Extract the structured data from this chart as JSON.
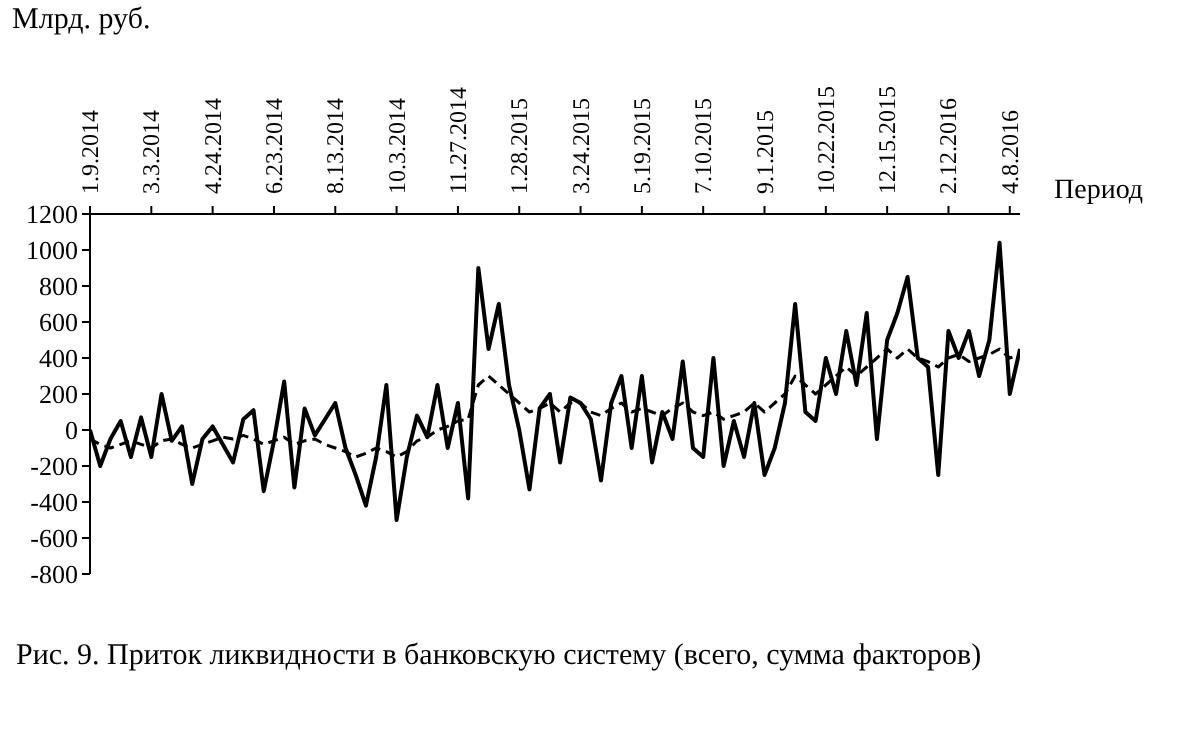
{
  "chart_data": {
    "type": "line",
    "ylabel": "Млрд. руб.",
    "xlabel": "Период",
    "annotations": [
      "Рис. 9. Приток ликвидности в банковскую систему (всего, сумма факторов)"
    ],
    "categories": [
      "1.9.2014",
      null,
      null,
      null,
      null,
      null,
      "3.3.2014",
      null,
      null,
      null,
      null,
      null,
      "4.24.2014",
      null,
      null,
      null,
      null,
      null,
      "6.23.2014",
      null,
      null,
      null,
      null,
      null,
      "8.13.2014",
      null,
      null,
      null,
      null,
      null,
      "10.3.2014",
      null,
      null,
      null,
      null,
      null,
      "11.27.2014",
      null,
      null,
      null,
      null,
      null,
      "1.28.2015",
      null,
      null,
      null,
      null,
      null,
      "3.24.2015",
      null,
      null,
      null,
      null,
      null,
      "5.19.2015",
      null,
      null,
      null,
      null,
      null,
      "7.10.2015",
      null,
      null,
      null,
      null,
      null,
      "9.1.2015",
      null,
      null,
      null,
      null,
      null,
      "10.22.2015",
      null,
      null,
      null,
      null,
      null,
      "12.15.2015",
      null,
      null,
      null,
      null,
      null,
      "2.12.2016",
      null,
      null,
      null,
      null,
      null,
      "4.8.2016",
      null
    ],
    "series": [
      {
        "color": "#000000",
        "line_style": "solid",
        "values": [
          0,
          -200,
          -50,
          50,
          -150,
          70,
          -150,
          200,
          -60,
          20,
          -300,
          -50,
          20,
          -80,
          -180,
          60,
          110,
          -340,
          -60,
          270,
          -320,
          120,
          -30,
          60,
          150,
          -100,
          -250,
          -420,
          -150,
          250,
          -500,
          -150,
          80,
          -40,
          250,
          -100,
          150,
          -380,
          900,
          450,
          700,
          250,
          0,
          -330,
          120,
          200,
          -180,
          180,
          150,
          60,
          -280,
          150,
          300,
          -100,
          300,
          -180,
          100,
          -50,
          380,
          -100,
          -150,
          400,
          -200,
          50,
          -150,
          150,
          -250,
          -100,
          150,
          700,
          100,
          50,
          400,
          200,
          550,
          250,
          650,
          -50,
          500,
          650,
          850,
          400,
          350,
          -250,
          550,
          400,
          550,
          300,
          500,
          1040,
          200,
          450
        ]
      },
      {
        "color": "#000000",
        "line_style": "dashed",
        "values": [
          -50,
          -80,
          -100,
          -80,
          -60,
          -80,
          -100,
          -60,
          -50,
          -80,
          -100,
          -80,
          -60,
          -40,
          -50,
          -30,
          -50,
          -80,
          -60,
          -40,
          -80,
          -60,
          -50,
          -80,
          -100,
          -120,
          -150,
          -130,
          -100,
          -120,
          -150,
          -120,
          -60,
          -40,
          0,
          20,
          50,
          60,
          250,
          300,
          250,
          200,
          150,
          100,
          120,
          150,
          100,
          150,
          150,
          100,
          80,
          120,
          150,
          100,
          120,
          100,
          80,
          120,
          150,
          100,
          80,
          100,
          60,
          80,
          100,
          150,
          100,
          150,
          200,
          300,
          250,
          200,
          250,
          300,
          350,
          300,
          350,
          400,
          450,
          400,
          450,
          400,
          380,
          350,
          400,
          420,
          380,
          400,
          420,
          450,
          400,
          420
        ]
      }
    ],
    "ylim": [
      -800,
      1200
    ],
    "yticks": [
      -800,
      -600,
      -400,
      -200,
      0,
      200,
      400,
      600,
      800,
      1000,
      1200
    ],
    "grid": false,
    "legend": false,
    "marker": "none"
  }
}
